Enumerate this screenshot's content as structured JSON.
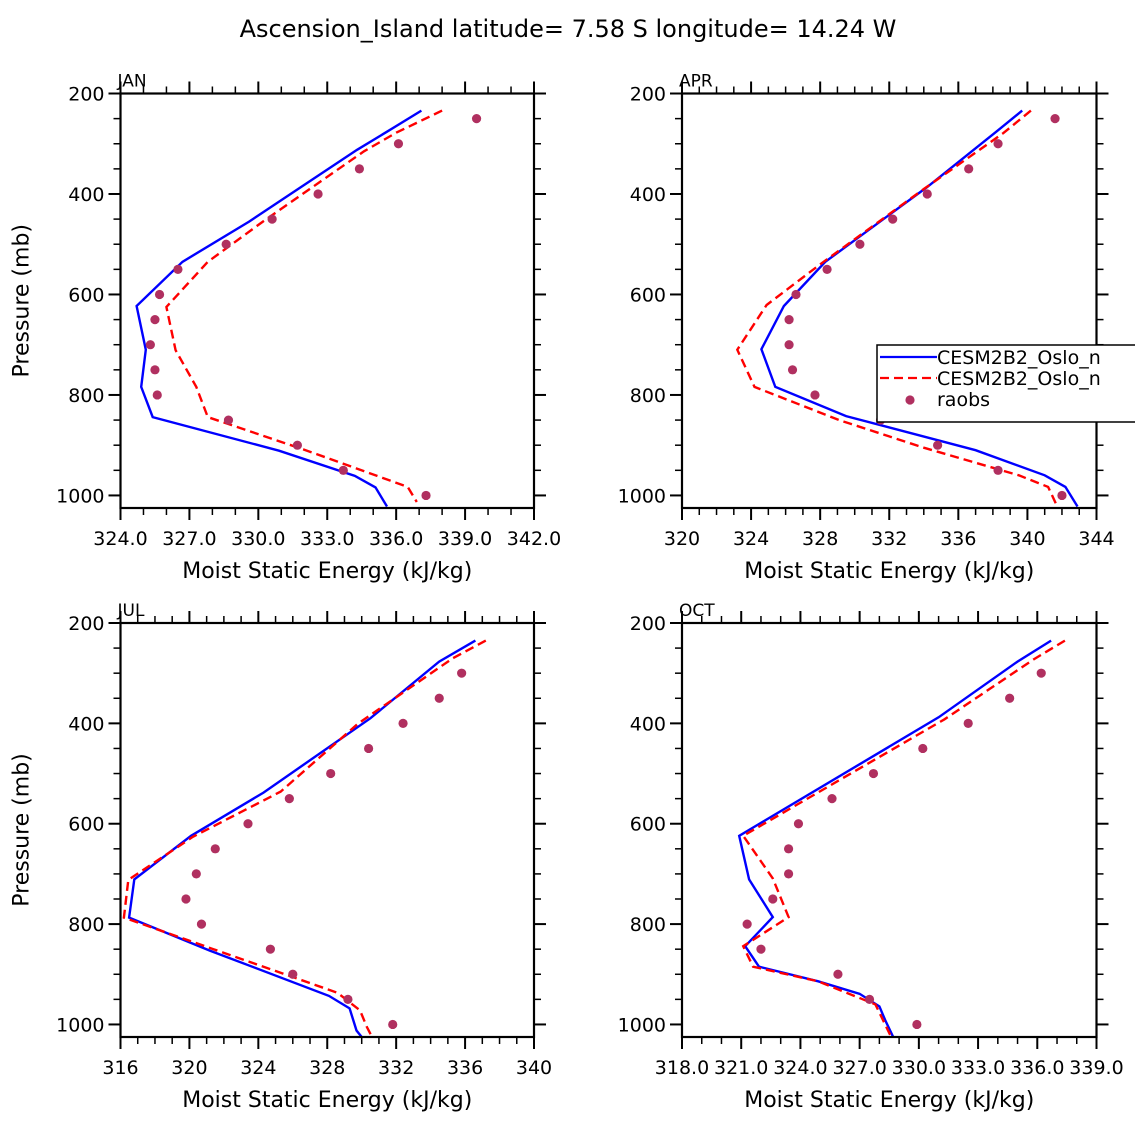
{
  "title": "Ascension_Island   latitude= 7.58 S longitude= 14.24 W",
  "chart_data": [
    {
      "type": "line",
      "panel": "JAN",
      "title": "JAN",
      "xlabel": "Moist Static Energy (kJ/kg)",
      "ylabel": "Pressure (mb)",
      "xlim": [
        324,
        342
      ],
      "ylim": [
        1025,
        200
      ],
      "xticks": [
        324,
        327,
        330,
        333,
        336,
        339,
        342
      ],
      "xtick_labels": [
        "324.0",
        "327.0",
        "330.0",
        "333.0",
        "336.0",
        "339.0",
        "342.0"
      ],
      "xminor_step": 1,
      "yticks": [
        200,
        400,
        600,
        800,
        1000
      ],
      "ytick_labels": [
        "200",
        "400",
        "600",
        "800",
        "1000"
      ],
      "yminor_step": 50,
      "series": [
        {
          "name": "CESM2B2_Oslo_n (solid)",
          "style": "solid",
          "color": "#0000ff",
          "points": [
            [
              337.1,
              234
            ],
            [
              335.6,
              276
            ],
            [
              334.3,
              312
            ],
            [
              329.6,
              455
            ],
            [
              326.7,
              535
            ],
            [
              324.7,
              623
            ],
            [
              325.1,
              710
            ],
            [
              324.9,
              784
            ],
            [
              325.4,
              844
            ],
            [
              330.9,
              911
            ],
            [
              334.2,
              961
            ],
            [
              335.1,
              984
            ],
            [
              335.6,
              1022
            ]
          ]
        },
        {
          "name": "CESM2B2_Oslo_n (dashed)",
          "style": "dashed",
          "color": "#ff0000",
          "points": [
            [
              338.0,
              234
            ],
            [
              336.0,
              278
            ],
            [
              334.6,
              315
            ],
            [
              330.2,
              455
            ],
            [
              327.8,
              535
            ],
            [
              326.0,
              625
            ],
            [
              326.4,
              711
            ],
            [
              327.3,
              784
            ],
            [
              327.8,
              844
            ],
            [
              332.0,
              909
            ],
            [
              336.5,
              983
            ],
            [
              336.9,
              1013
            ]
          ]
        },
        {
          "name": "raobs",
          "style": "markers",
          "color": "#b03060",
          "points": [
            [
              339.5,
              250
            ],
            [
              336.1,
              300
            ],
            [
              334.4,
              350
            ],
            [
              332.6,
              400
            ],
            [
              330.6,
              450
            ],
            [
              328.6,
              500
            ],
            [
              326.5,
              550
            ],
            [
              325.7,
              600
            ],
            [
              325.5,
              650
            ],
            [
              325.3,
              700
            ],
            [
              325.5,
              750
            ],
            [
              325.6,
              800
            ],
            [
              328.7,
              850
            ],
            [
              331.7,
              900
            ],
            [
              333.7,
              950
            ],
            [
              337.3,
              1000
            ]
          ]
        }
      ]
    },
    {
      "type": "line",
      "panel": "APR",
      "title": "APR",
      "xlabel": "Moist Static Energy (kJ/kg)",
      "ylabel": "",
      "xlim": [
        320,
        344
      ],
      "ylim": [
        1025,
        200
      ],
      "xticks": [
        320,
        324,
        328,
        332,
        336,
        340,
        344
      ],
      "xtick_labels": [
        "320",
        "324",
        "328",
        "332",
        "336",
        "340",
        "344"
      ],
      "xminor_step": 1,
      "yticks": [
        200,
        400,
        600,
        800,
        1000
      ],
      "ytick_labels": [
        "200",
        "400",
        "600",
        "800",
        "1000"
      ],
      "yminor_step": 50,
      "legend": {
        "placement": "right-middle",
        "entries": [
          {
            "label": "CESM2B2_Oslo_n",
            "style": "solid",
            "color": "#0000ff"
          },
          {
            "label": "CESM2B2_Oslo_n",
            "style": "dashed",
            "color": "#ff0000"
          },
          {
            "label": "raobs",
            "style": "markers",
            "color": "#b03060"
          }
        ]
      },
      "series": [
        {
          "name": "CESM2B2_Oslo_n (solid)",
          "style": "solid",
          "color": "#0000ff",
          "points": [
            [
              339.7,
              234
            ],
            [
              338.2,
              276
            ],
            [
              334.2,
              386
            ],
            [
              328.3,
              535
            ],
            [
              325.9,
              623
            ],
            [
              324.6,
              709
            ],
            [
              325.4,
              784
            ],
            [
              329.5,
              842
            ],
            [
              337.0,
              910
            ],
            [
              341.0,
              960
            ],
            [
              342.2,
              983
            ],
            [
              342.9,
              1022
            ]
          ]
        },
        {
          "name": "CESM2B2_Oslo_n (dashed)",
          "style": "dashed",
          "color": "#ff0000",
          "points": [
            [
              340.2,
              234
            ],
            [
              338.6,
              279
            ],
            [
              334.0,
              390
            ],
            [
              328.0,
              540
            ],
            [
              324.9,
              621
            ],
            [
              323.2,
              710
            ],
            [
              324.2,
              784
            ],
            [
              329.1,
              850
            ],
            [
              334.0,
              905
            ],
            [
              339.5,
              960
            ],
            [
              341.2,
              983
            ],
            [
              341.7,
              1020
            ]
          ]
        },
        {
          "name": "raobs",
          "style": "markers",
          "color": "#b03060",
          "points": [
            [
              341.6,
              250
            ],
            [
              338.3,
              300
            ],
            [
              336.6,
              350
            ],
            [
              334.2,
              400
            ],
            [
              332.2,
              450
            ],
            [
              330.3,
              500
            ],
            [
              328.4,
              550
            ],
            [
              326.6,
              600
            ],
            [
              326.2,
              650
            ],
            [
              326.2,
              700
            ],
            [
              326.4,
              750
            ],
            [
              327.7,
              800
            ],
            [
              331.5,
              850
            ],
            [
              334.8,
              900
            ],
            [
              338.3,
              950
            ],
            [
              342.0,
              1000
            ]
          ]
        }
      ]
    },
    {
      "type": "line",
      "panel": "JUL",
      "title": "JUL",
      "xlabel": "Moist Static Energy (kJ/kg)",
      "ylabel": "Pressure (mb)",
      "xlim": [
        316,
        340
      ],
      "ylim": [
        1025,
        200
      ],
      "xticks": [
        316,
        320,
        324,
        328,
        332,
        336,
        340
      ],
      "xtick_labels": [
        "316",
        "320",
        "324",
        "328",
        "332",
        "336",
        "340"
      ],
      "xminor_step": 1,
      "yticks": [
        200,
        400,
        600,
        800,
        1000
      ],
      "ytick_labels": [
        "200",
        "400",
        "600",
        "800",
        "1000"
      ],
      "yminor_step": 50,
      "series": [
        {
          "name": "CESM2B2_Oslo_n (solid)",
          "style": "solid",
          "color": "#0000ff",
          "points": [
            [
              336.6,
              235
            ],
            [
              334.5,
              277
            ],
            [
              330.5,
              390
            ],
            [
              324.3,
              538
            ],
            [
              320.1,
              624
            ],
            [
              316.8,
              711
            ],
            [
              316.5,
              787
            ],
            [
              321.2,
              853
            ],
            [
              328.1,
              943
            ],
            [
              329.3,
              968
            ],
            [
              329.7,
              1012
            ],
            [
              330.0,
              1025
            ]
          ]
        },
        {
          "name": "CESM2B2_Oslo_n (dashed)",
          "style": "dashed",
          "color": "#ff0000",
          "points": [
            [
              337.2,
              235
            ],
            [
              335.3,
              270
            ],
            [
              329.8,
              400
            ],
            [
              325.3,
              536
            ],
            [
              320.2,
              626
            ],
            [
              316.45,
              712
            ],
            [
              316.2,
              787
            ],
            [
              321.4,
              850
            ],
            [
              328.6,
              937
            ],
            [
              329.9,
              972
            ],
            [
              330.3,
              1005
            ],
            [
              330.6,
              1025
            ]
          ]
        },
        {
          "name": "raobs",
          "style": "markers",
          "color": "#b03060",
          "points": [
            [
              335.8,
              300
            ],
            [
              334.5,
              350
            ],
            [
              332.4,
              400
            ],
            [
              330.4,
              450
            ],
            [
              328.2,
              500
            ],
            [
              325.8,
              550
            ],
            [
              323.4,
              600
            ],
            [
              321.5,
              650
            ],
            [
              320.4,
              700
            ],
            [
              319.8,
              750
            ],
            [
              320.7,
              800
            ],
            [
              324.7,
              850
            ],
            [
              326.0,
              900
            ],
            [
              329.2,
              950
            ],
            [
              331.8,
              1000
            ]
          ]
        }
      ]
    },
    {
      "type": "line",
      "panel": "OCT",
      "title": "OCT",
      "xlabel": "Moist Static Energy (kJ/kg)",
      "ylabel": "",
      "xlim": [
        318,
        339
      ],
      "ylim": [
        1025,
        200
      ],
      "xticks": [
        318,
        321,
        324,
        327,
        330,
        333,
        336,
        339
      ],
      "xtick_labels": [
        "318.0",
        "321.0",
        "324.0",
        "327.0",
        "330.0",
        "333.0",
        "336.0",
        "339.0"
      ],
      "xminor_step": 1,
      "yticks": [
        200,
        400,
        600,
        800,
        1000
      ],
      "ytick_labels": [
        "200",
        "400",
        "600",
        "800",
        "1000"
      ],
      "yminor_step": 50,
      "series": [
        {
          "name": "CESM2B2_Oslo_n (solid)",
          "style": "solid",
          "color": "#0000ff",
          "points": [
            [
              336.7,
              235
            ],
            [
              335.0,
              277
            ],
            [
              331.0,
              388
            ],
            [
              320.9,
              624
            ],
            [
              321.4,
              711
            ],
            [
              322.6,
              786
            ],
            [
              321.2,
              844
            ],
            [
              321.9,
              885
            ],
            [
              324.9,
              914
            ],
            [
              327.0,
              939
            ],
            [
              328.0,
              964
            ],
            [
              328.3,
              992
            ],
            [
              328.7,
              1025
            ]
          ]
        },
        {
          "name": "CESM2B2_Oslo_n (dashed)",
          "style": "dashed",
          "color": "#ff0000",
          "points": [
            [
              337.4,
              235
            ],
            [
              335.8,
              273
            ],
            [
              331.3,
              392
            ],
            [
              321.1,
              624
            ],
            [
              322.6,
              709
            ],
            [
              323.4,
              786
            ],
            [
              321.1,
              844
            ],
            [
              321.6,
              885
            ],
            [
              324.9,
              914
            ],
            [
              327.8,
              960
            ],
            [
              328.6,
              1025
            ]
          ]
        },
        {
          "name": "raobs",
          "style": "markers",
          "color": "#b03060",
          "points": [
            [
              336.2,
              300
            ],
            [
              334.6,
              350
            ],
            [
              332.5,
              400
            ],
            [
              330.2,
              450
            ],
            [
              327.7,
              500
            ],
            [
              325.6,
              550
            ],
            [
              323.9,
              600
            ],
            [
              323.4,
              650
            ],
            [
              323.4,
              700
            ],
            [
              322.6,
              750
            ],
            [
              321.3,
              800
            ],
            [
              322.0,
              850
            ],
            [
              325.9,
              900
            ],
            [
              327.5,
              950
            ],
            [
              329.9,
              1000
            ]
          ]
        }
      ]
    }
  ]
}
